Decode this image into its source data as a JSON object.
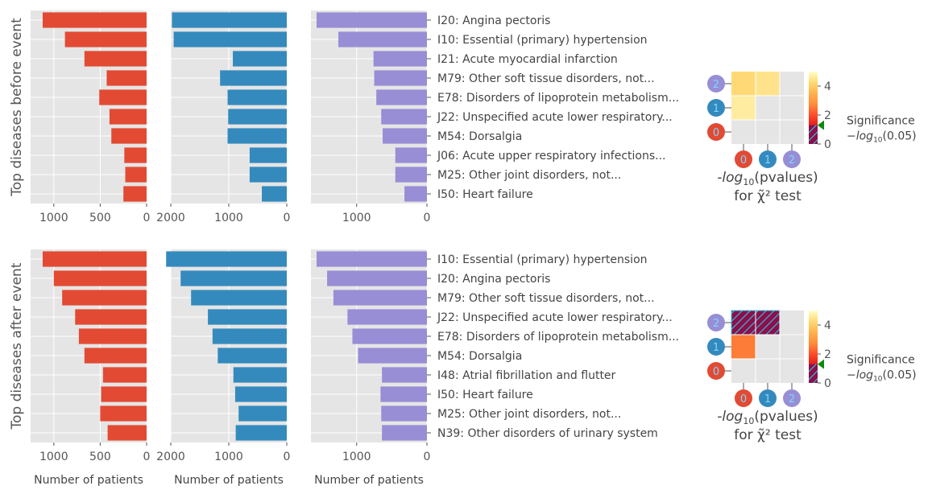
{
  "chart_data": {
    "type": "bar",
    "orientation": "horizontal-reversed",
    "shared_xlabel": "Number of patients",
    "significance_label": "Significance",
    "significance_threshold_label": "−log",
    "significance_threshold_sub": "10",
    "significance_threshold_paren": "(0.05)",
    "heatmap_title_line1_pre": "-log",
    "heatmap_title_line1_sub": "10",
    "heatmap_title_line1_post": "(pvalues)",
    "heatmap_title_line2": "for χ̃² test",
    "heatmap_cluster_ids": [
      "0",
      "1",
      "2"
    ],
    "colorbar_ticks": [
      0,
      2,
      4
    ],
    "colorbar_range": [
      0,
      5
    ],
    "significance_threshold": 1.3,
    "colors": {
      "cluster0": "#E24A33",
      "cluster1": "#348ABD",
      "cluster2": "#988ED5",
      "axes_bg": "#E5E5E5",
      "grid": "#ffffff"
    },
    "rows": [
      {
        "ylabel": "Top diseases before event",
        "categories": [
          "I20: Angina pectoris",
          "I10: Essential (primary) hypertension",
          "I21: Acute myocardial infarction",
          "M79: Other soft tissue disorders, not...",
          "E78: Disorders of lipoprotein metabolism...",
          "J22: Unspecified acute lower respiratory...",
          "M54: Dorsalgia",
          "J06: Acute upper respiratory infections...",
          "M25: Other joint disorders, not...",
          "I50: Heart failure"
        ],
        "series": [
          {
            "values": [
              1120,
              880,
              670,
              430,
              510,
              400,
              380,
              240,
              230,
              250
            ],
            "xlim": [
              1250,
              0
            ],
            "xticks": [
              1000,
              500,
              0
            ]
          },
          {
            "values": [
              1980,
              1950,
              930,
              1150,
              1020,
              1010,
              1020,
              640,
              640,
              430
            ],
            "xlim": [
              2000,
              0
            ],
            "xticks": [
              2000,
              1000,
              0
            ]
          },
          {
            "values": [
              1570,
              1260,
              760,
              750,
              720,
              650,
              630,
              450,
              450,
              320
            ],
            "xlim": [
              1650,
              0
            ],
            "xticks": [
              1000,
              0
            ]
          }
        ],
        "heatmap": [
          [
            0,
            0,
            0
          ],
          [
            4.8,
            0,
            0
          ],
          [
            4.6,
            4.7,
            0
          ]
        ],
        "hatched": []
      },
      {
        "ylabel": "Top diseases after event",
        "categories": [
          "I10: Essential (primary) hypertension",
          "I20: Angina pectoris",
          "M79: Other soft tissue disorders, not...",
          "J22: Unspecified acute lower respiratory...",
          "E78: Disorders of lipoprotein metabolism...",
          "M54: Dorsalgia",
          "I48: Atrial fibrillation and flutter",
          "I50: Heart failure",
          "M25: Other joint disorders, not...",
          "N39: Other disorders of urinary system"
        ],
        "series": [
          {
            "values": [
              1120,
              1000,
              910,
              770,
              730,
              670,
              470,
              490,
              500,
              420
            ],
            "xlim": [
              1250,
              0
            ],
            "xticks": [
              1000,
              500,
              0
            ]
          },
          {
            "values": [
              2080,
              1830,
              1650,
              1360,
              1280,
              1190,
              920,
              890,
              830,
              880
            ],
            "xlim": [
              2000,
              0
            ],
            "xticks": [
              2000,
              1000,
              0
            ]
          },
          {
            "values": [
              1570,
              1420,
              1330,
              1130,
              1060,
              980,
              640,
              660,
              650,
              640
            ],
            "xlim": [
              1650,
              0
            ],
            "xticks": [
              1000,
              0
            ]
          }
        ],
        "heatmap": [
          [
            0,
            0,
            0
          ],
          [
            3.3,
            0,
            0
          ],
          [
            0.3,
            0.4,
            0
          ]
        ],
        "hatched": [
          [
            2,
            0
          ],
          [
            2,
            1
          ]
        ]
      }
    ]
  }
}
